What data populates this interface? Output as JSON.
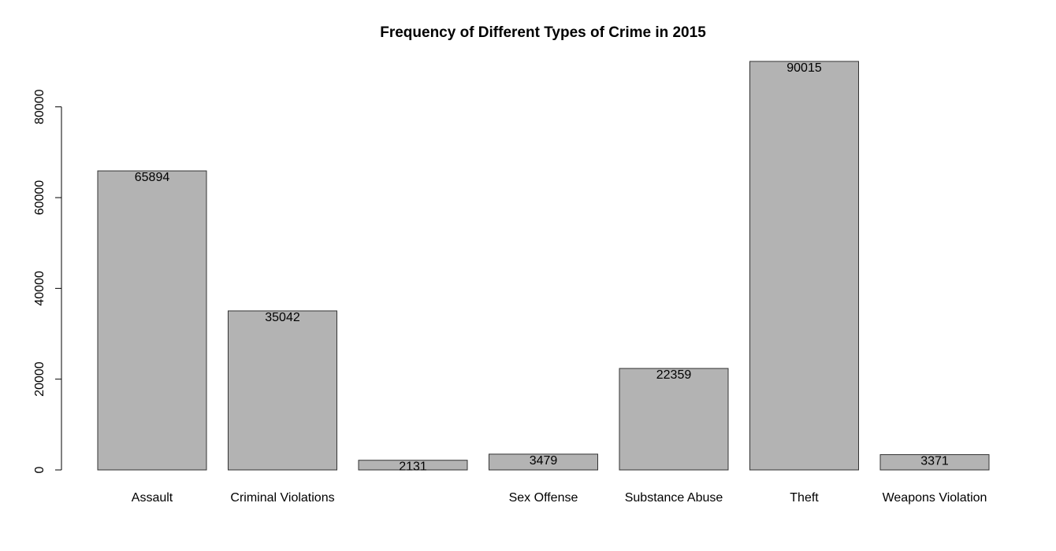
{
  "chart_data": {
    "type": "bar",
    "title": "Frequency of Different Types of Crime in 2015",
    "xlabel": "",
    "ylabel": "",
    "categories": [
      "Assault",
      "Criminal Violations",
      "",
      "Sex Offense",
      "Substance Abuse",
      "Theft",
      "Weapons Violation"
    ],
    "values": [
      65894,
      35042,
      2131,
      3479,
      22359,
      90015,
      3371
    ],
    "value_labels": [
      "65894",
      "35042",
      "2131",
      "3479",
      "22359",
      "90015",
      "3371"
    ],
    "yticks": [
      0,
      20000,
      40000,
      60000,
      80000
    ],
    "ytick_labels": [
      "0",
      "20000",
      "40000",
      "60000",
      "80000"
    ],
    "ylim": [
      0,
      90015
    ],
    "grid": false,
    "legend": "none",
    "colors": {
      "bar_fill": "#b3b3b3",
      "bar_stroke": "#333333",
      "text": "#000000"
    }
  }
}
